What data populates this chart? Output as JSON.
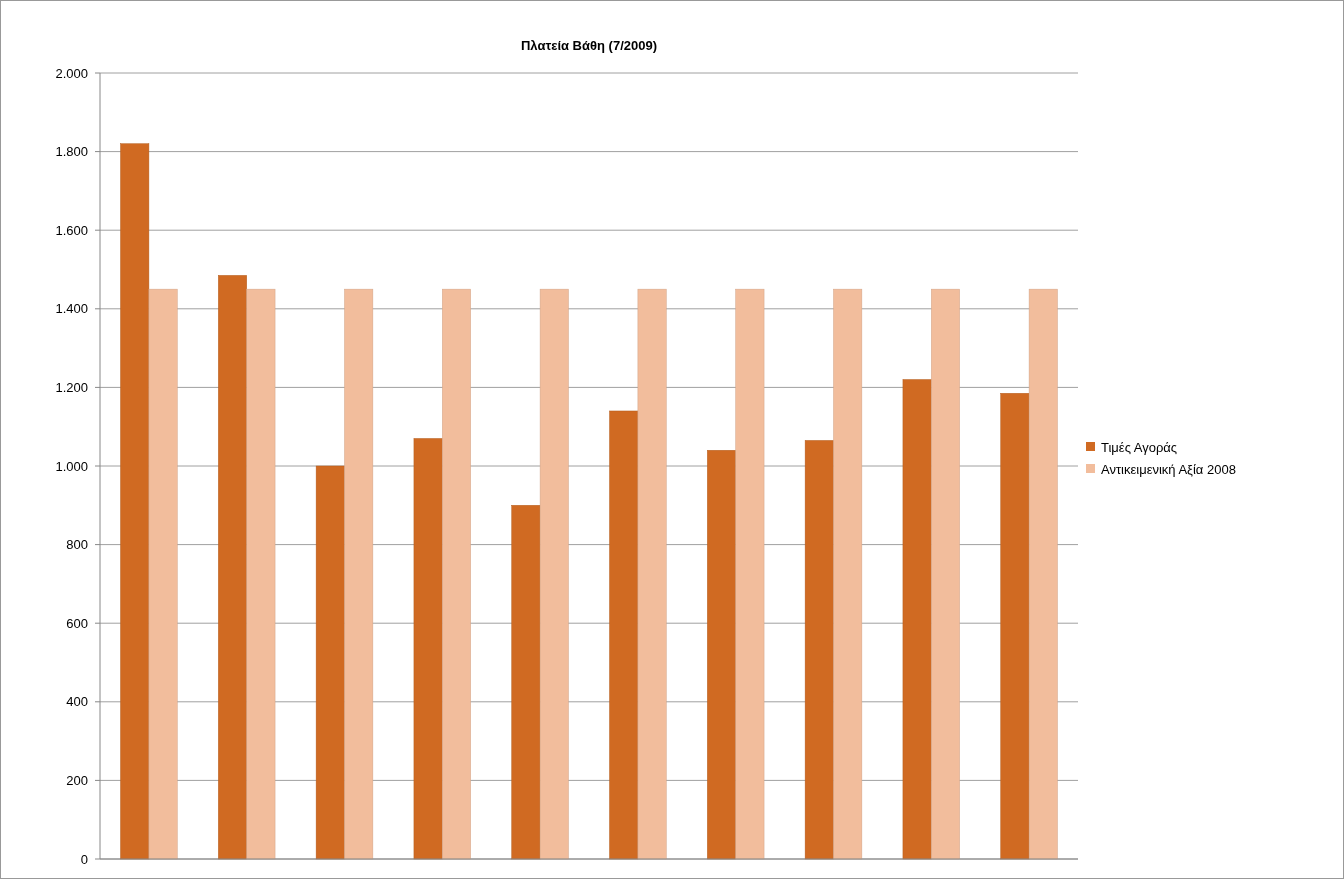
{
  "chart_data": {
    "type": "bar",
    "title": "Πλατεία Βάθη    (7/2009)",
    "categories": [
      null,
      null,
      null,
      null,
      null,
      null,
      null,
      null,
      null,
      null
    ],
    "series": [
      {
        "name": "Τιμές Αγοράς",
        "color": "#d06a22",
        "values": [
          1820,
          1485,
          1000,
          1070,
          900,
          1140,
          1040,
          1065,
          1220,
          1185
        ]
      },
      {
        "name": "Αντικειμενική Αξία 2008",
        "color": "#f2bd9c",
        "values": [
          1450,
          1450,
          1450,
          1450,
          1450,
          1450,
          1450,
          1450,
          1450,
          1450
        ]
      }
    ],
    "ylim": [
      0,
      2000
    ],
    "yticks": [
      {
        "value": 0,
        "label": "0"
      },
      {
        "value": 200,
        "label": "200"
      },
      {
        "value": 400,
        "label": "400"
      },
      {
        "value": 600,
        "label": "600"
      },
      {
        "value": 800,
        "label": "800"
      },
      {
        "value": 1000,
        "label": "1.000"
      },
      {
        "value": 1200,
        "label": "1.200"
      },
      {
        "value": 1400,
        "label": "1.400"
      },
      {
        "value": 1600,
        "label": "1.600"
      },
      {
        "value": 1800,
        "label": "1.800"
      },
      {
        "value": 2000,
        "label": "2.000"
      }
    ],
    "grid": "y",
    "legend": "right"
  }
}
